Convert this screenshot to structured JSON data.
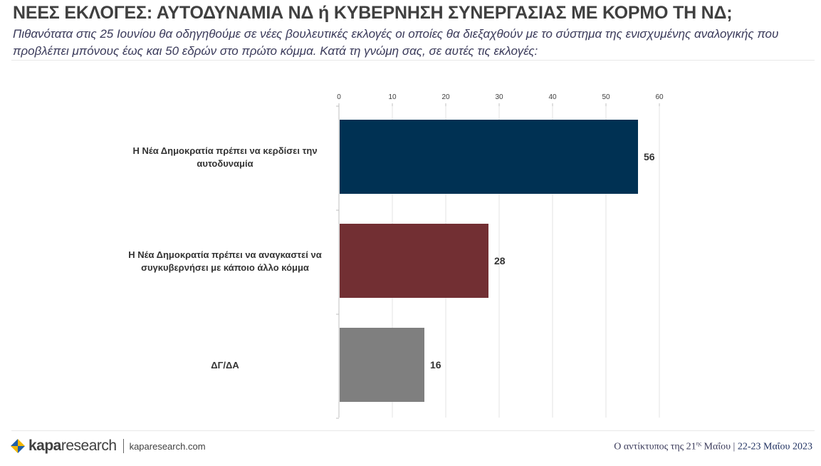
{
  "header": {
    "title": "ΝΕΕΣ ΕΚΛΟΓΕΣ: ΑΥΤΟΔΥΝΑΜΙΑ ΝΔ ή ΚΥΒΕΡΝΗΣΗ ΣΥΝΕΡΓΑΣΙΑΣ ΜΕ ΚΟΡΜΟ ΤΗ ΝΔ;",
    "subtitle": "Πιθανότατα στις 25 Ιουνίου θα οδηγηθούμε σε νέες βουλευτικές εκλογές οι οποίες θα διεξαχθούν με το σύστημα της ενισχυμένης αναλογικής που προβλέπει μπόνους έως και 50 εδρών στο πρώτο κόμμα. Κατά τη γνώμη σας, σε αυτές τις εκλογές:"
  },
  "chart_data": {
    "type": "bar",
    "orientation": "horizontal",
    "categories": [
      [
        "Η Νέα Δημοκρατία πρέπει να κερδίσει την",
        "αυτοδυναμία"
      ],
      [
        "Η Νέα Δημοκρατία πρέπει να αναγκαστεί να",
        "συγκυβερνήσει με κάποιο άλλο κόμμα"
      ],
      [
        "ΔΓ/ΔΑ"
      ]
    ],
    "values": [
      56,
      28,
      16
    ],
    "data_labels": [
      "56",
      "28",
      "16"
    ],
    "colors": [
      "#003153",
      "#722F33",
      "#7F7F7F"
    ],
    "xlim": [
      0,
      60
    ],
    "ticks": [
      0,
      10,
      20,
      30,
      40,
      50,
      60
    ],
    "tick_labels": [
      "0",
      "10",
      "20",
      "30",
      "40",
      "50",
      "60"
    ],
    "x_axis_position": "top",
    "gridlines": true,
    "legend": false
  },
  "footer": {
    "logo_bold": "kapa",
    "logo_light": "research",
    "website": "kaparesearch.com",
    "source_prefix": "Ο αντίκτυπος της 21",
    "source_superscript": "ης",
    "source_suffix": " Μαΐου | ",
    "source_date": "22-23 Μαΐου 2023"
  },
  "brand_colors": {
    "logo_blue": "#1f5fa8",
    "logo_yellow": "#f2b705"
  }
}
